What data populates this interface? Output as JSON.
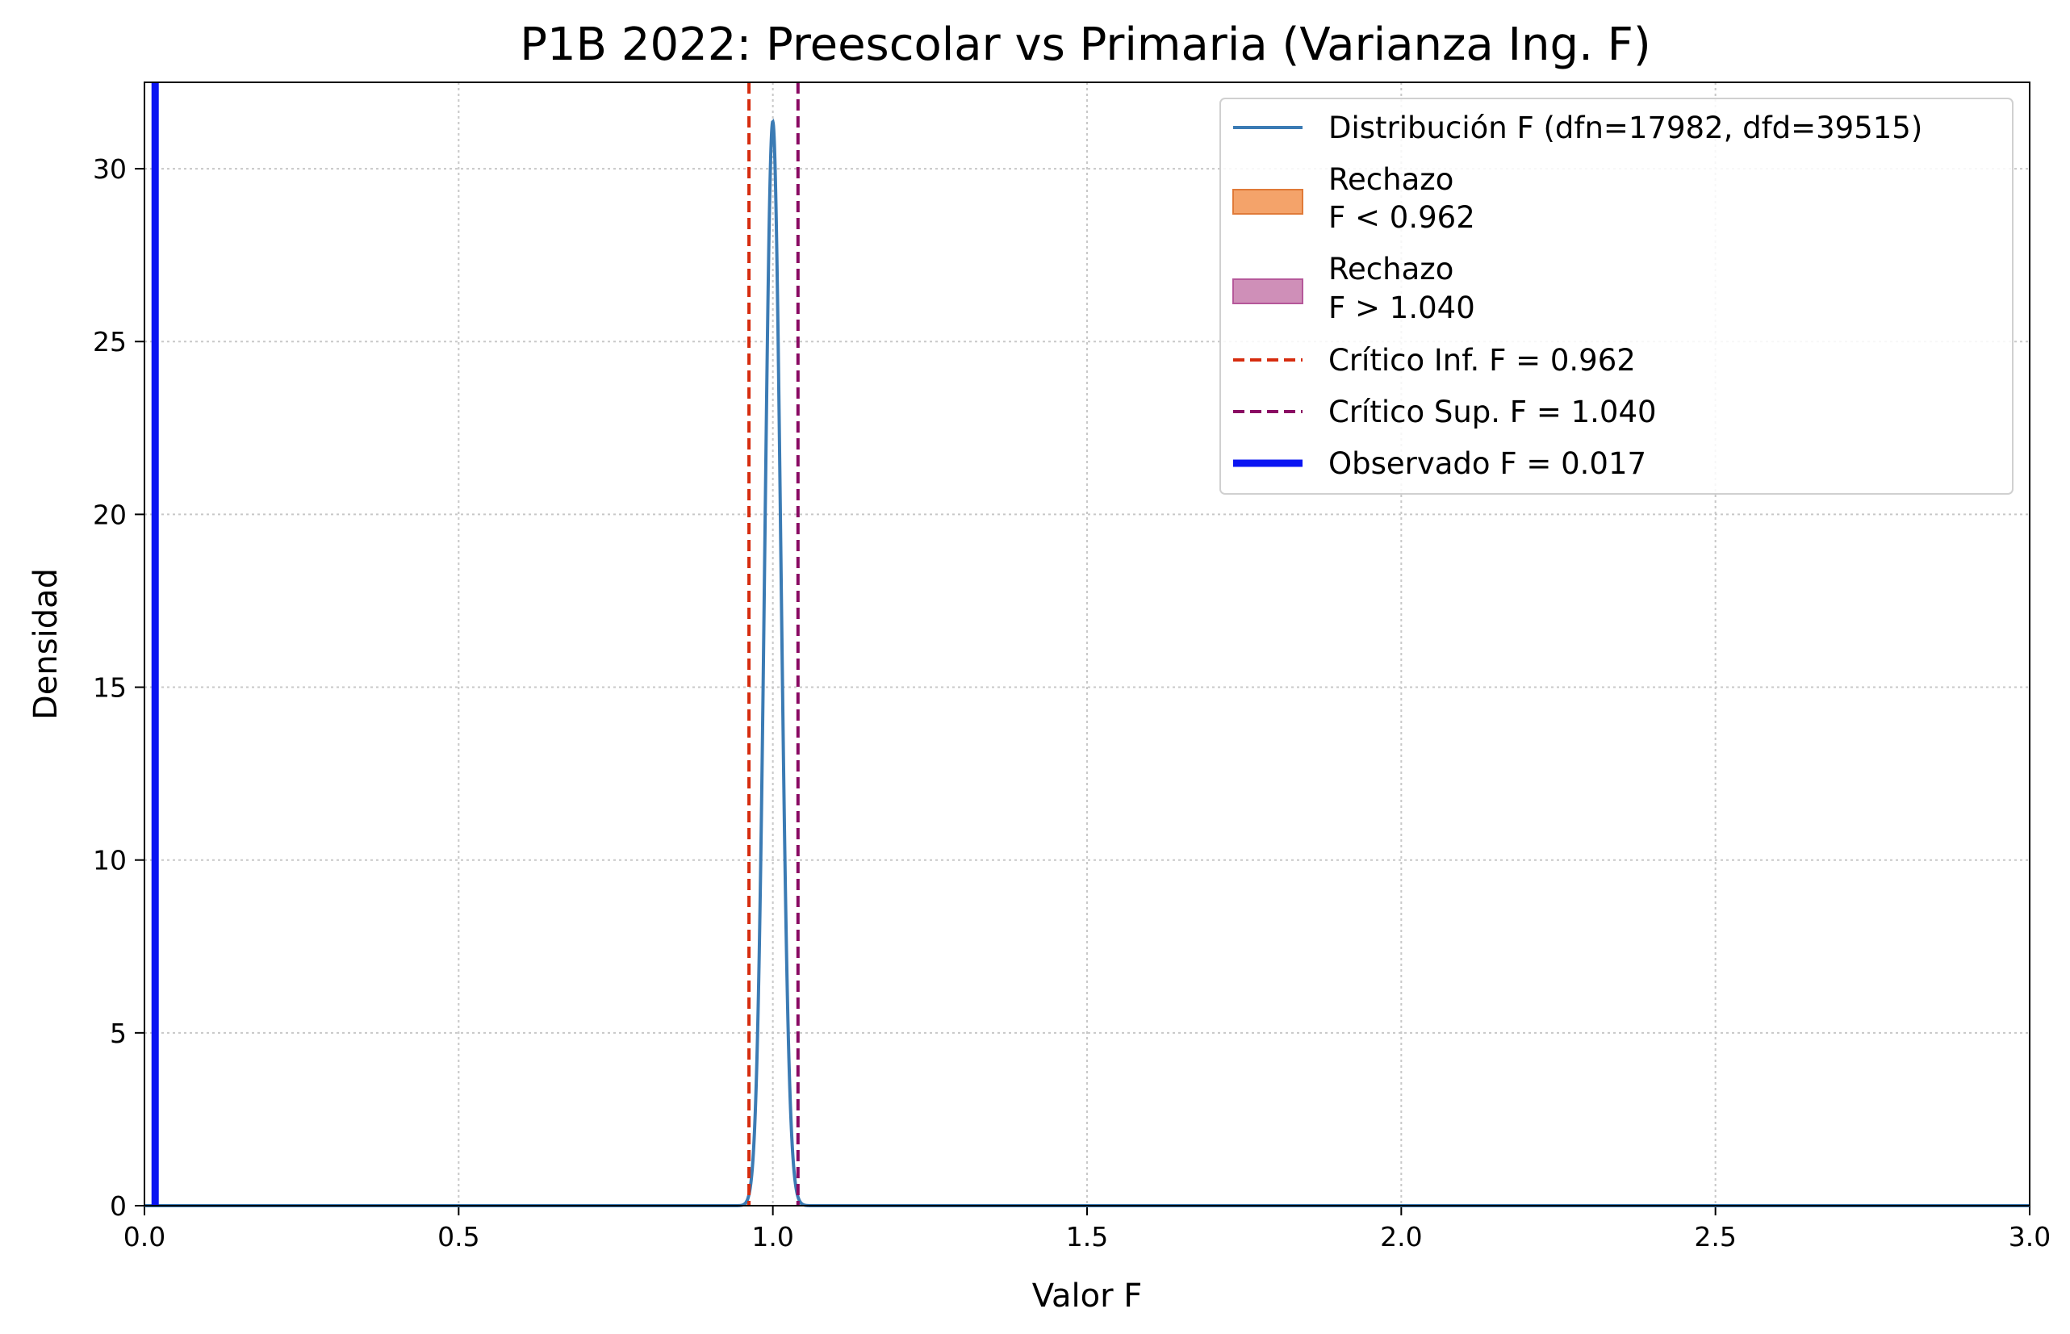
{
  "chart_data": {
    "type": "line",
    "title": "P1B 2022: Preescolar vs Primaria (Varianza Ing. F)",
    "xlabel": "Valor F",
    "ylabel": "Densidad",
    "xlim": [
      0,
      3.0
    ],
    "ylim": [
      0,
      32.5
    ],
    "grid": true,
    "legend_position": "top-right",
    "x_ticks": [
      0.0,
      0.5,
      1.0,
      1.5,
      2.0,
      2.5,
      3.0
    ],
    "x_tick_labels": [
      "0.0",
      "0.5",
      "1.0",
      "1.5",
      "2.0",
      "2.5",
      "3.0"
    ],
    "y_ticks": [
      0,
      5,
      10,
      15,
      20,
      25,
      30
    ],
    "y_tick_labels": [
      "0",
      "5",
      "10",
      "15",
      "20",
      "25",
      "30"
    ],
    "distribution": {
      "label": "Distribución F (dfn=17982, dfd=39515)",
      "dfn": 17982,
      "dfd": 39515,
      "color": "#3b7bb4"
    },
    "reject_lower": {
      "label_line1": "Rechazo",
      "label_line2": "F < 0.962",
      "color": "#f4a36a",
      "edge": "#e07a38"
    },
    "reject_upper": {
      "label_line1": "Rechazo",
      "label_line2": "F > 1.040",
      "color": "#cf8fb8",
      "edge": "#b5589a"
    },
    "critical_lower": {
      "label": "Crítico Inf. F = 0.962",
      "value": 0.962,
      "color": "#d62c0e"
    },
    "critical_upper": {
      "label": "Crítico Sup. F = 1.040",
      "value": 1.04,
      "color": "#8a0a63"
    },
    "observed": {
      "label": "Observado F = 0.017",
      "value": 0.017,
      "color": "#0a14f2"
    }
  }
}
